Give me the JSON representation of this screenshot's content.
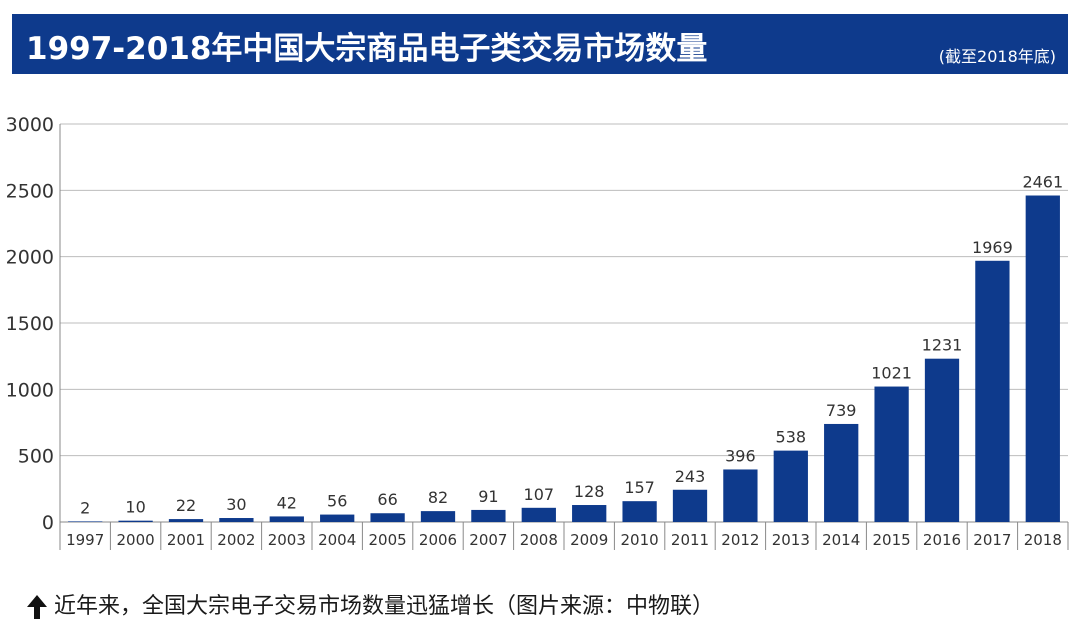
{
  "header": {
    "title": "1997-2018年中国大宗商品电子类交易市场数量",
    "subtitle": "(截至2018年底)"
  },
  "caption": {
    "icon": "up-arrow-icon",
    "text": "近年来，全国大宗电子交易市场数量迅猛增长（图片来源：中物联）"
  },
  "colors": {
    "accent": "#0e3a8c",
    "bar": "#0e3a8c",
    "grid": "#bdbdbd"
  },
  "chart_data": {
    "type": "bar",
    "title": "1997-2018年中国大宗商品电子类交易市场数量",
    "subtitle": "(截至2018年底)",
    "xlabel": "",
    "ylabel": "",
    "categories": [
      "1997",
      "2000",
      "2001",
      "2002",
      "2003",
      "2004",
      "2005",
      "2006",
      "2007",
      "2008",
      "2009",
      "2010",
      "2011",
      "2012",
      "2013",
      "2014",
      "2015",
      "2016",
      "2017",
      "2018"
    ],
    "values": [
      2,
      10,
      22,
      30,
      42,
      56,
      66,
      82,
      91,
      107,
      128,
      157,
      243,
      396,
      538,
      739,
      1021,
      1231,
      1969,
      2461
    ],
    "ylim": [
      0,
      3000
    ],
    "yticks": [
      0,
      500,
      1000,
      1500,
      2000,
      2500,
      3000
    ],
    "grid": true,
    "legend": "none",
    "data_labels": true
  }
}
